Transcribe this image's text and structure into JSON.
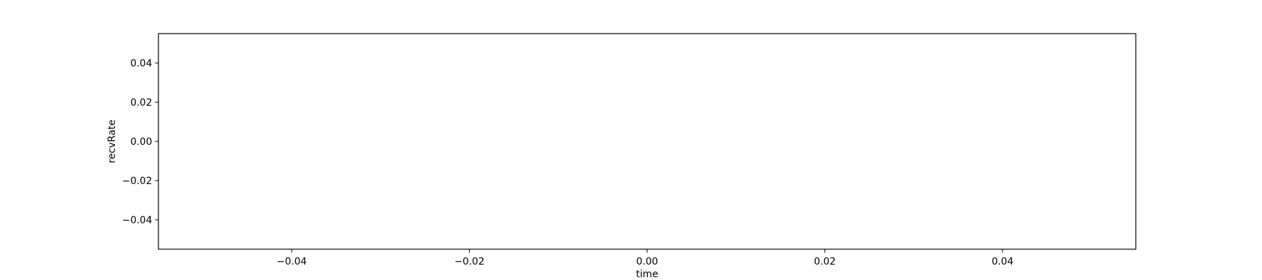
{
  "chart_data": {
    "type": "line",
    "title": "",
    "xlabel": "time",
    "ylabel": "recvRate",
    "xlim": [
      -0.055,
      0.055
    ],
    "ylim": [
      -0.055,
      0.055
    ],
    "xticks": [
      -0.04,
      -0.02,
      0.0,
      0.02,
      0.04
    ],
    "xtick_labels": [
      "−0.04",
      "−0.02",
      "0.00",
      "0.02",
      "0.04"
    ],
    "yticks": [
      0.04,
      0.02,
      0.0,
      -0.02,
      -0.04
    ],
    "ytick_labels": [
      "0.04",
      "0.02",
      "0.00",
      "−0.02",
      "−0.04"
    ],
    "series": [],
    "grid": false,
    "legend": "none"
  }
}
